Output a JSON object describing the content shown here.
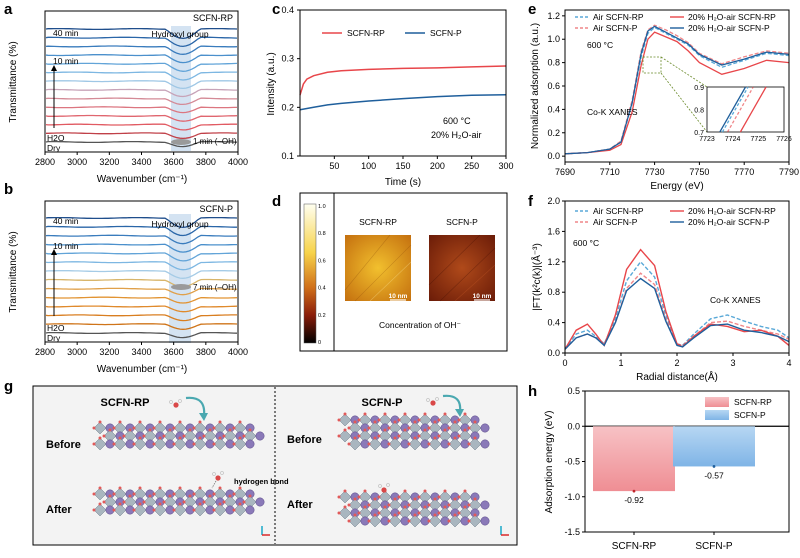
{
  "figure_caption": "",
  "colors": {
    "red": "#e8464a",
    "blue": "#1f5f9c",
    "lightblue": "#5aa9d8",
    "orange": "#e08a2c",
    "bar_red": "#f2a3a8",
    "bar_blue": "#8fc0ea",
    "band": "#c9dcef"
  },
  "panels": {
    "a": {
      "letter": "a",
      "title": "SCFN-RP",
      "band_label": "Hydroxyl group",
      "time_top": "40 min",
      "time_mid": "10 min",
      "arrow_note": "1 min (–OH)",
      "h2o": "H2O",
      "dry": "Dry",
      "xlabel": "Wavenumber (cm⁻¹)",
      "ylabel": "Transmittance (%)",
      "xticks": [
        "2800",
        "3000",
        "3200",
        "3400",
        "3600",
        "3800",
        "4000"
      ]
    },
    "b": {
      "letter": "b",
      "title": "SCFN-P",
      "band_label": "Hydroxyl group",
      "time_top": "40 min",
      "time_mid": "10 min",
      "arrow_note": "7 min (–OH)",
      "h2o": "H2O",
      "dry": "Dry",
      "xlabel": "Wavenumber (cm⁻¹)",
      "ylabel": "Transmittance (%)",
      "xticks": [
        "2800",
        "3000",
        "3200",
        "3400",
        "3600",
        "3800",
        "4000"
      ]
    },
    "c": {
      "letter": "c",
      "legend": [
        "SCFN-RP",
        "SCFN-P"
      ],
      "note1": "600 °C",
      "note2": "20% H₂O-air",
      "xlabel": "Time (s)",
      "ylabel": "Intensity (a.u.)",
      "xticks": [
        "50",
        "100",
        "150",
        "200",
        "250",
        "300"
      ],
      "yticks": [
        "0.1",
        "0.2",
        "0.3",
        "0.4"
      ]
    },
    "d": {
      "letter": "d",
      "scale_ticks": [
        "1.0",
        "0.8",
        "0.6",
        "0.4",
        "0.2",
        "0"
      ],
      "img1_label": "SCFN-RP",
      "img2_label": "SCFN-P",
      "scalebar": "10 nm",
      "caption": "Concentration of OH⁻"
    },
    "e": {
      "letter": "e",
      "legend": [
        "Air SCFN-RP",
        "Air SCFN-P",
        "20% H₂O-air SCFN-RP",
        "20% H₂O-air SCFN-P"
      ],
      "temp": "600 °C",
      "edge_label": "Co-K XANES",
      "xlabel": "Energy (eV)",
      "ylabel": "Normalized adsorption (a.u.)",
      "xticks": [
        "7690",
        "7710",
        "7730",
        "7750",
        "7770",
        "7790"
      ],
      "yticks": [
        "0.0",
        "0.2",
        "0.4",
        "0.6",
        "0.8",
        "1.0",
        "1.2"
      ],
      "inset_xticks": [
        "7723",
        "7724",
        "7725",
        "7726"
      ],
      "inset_yticks": [
        "0.7",
        "0.8",
        "0.9"
      ]
    },
    "f": {
      "letter": "f",
      "legend": [
        "Air SCFN-RP",
        "Air SCFN-P",
        "20% H₂O-air SCFN-RP",
        "20% H₂O-air SCFN-P"
      ],
      "temp": "600 °C",
      "edge_label": "Co-K XANES",
      "xlabel": "Radial distance(Å)",
      "ylabel": "|FT(k²c(k)|(Å⁻³)",
      "xticks": [
        "0",
        "1",
        "2",
        "3",
        "4"
      ],
      "yticks": [
        "0.0",
        "0.4",
        "0.8",
        "1.2",
        "1.6",
        "2.0"
      ]
    },
    "g": {
      "letter": "g",
      "left_title": "SCFN-RP",
      "right_title": "SCFN-P",
      "before": "Before",
      "after": "After",
      "hbond": "hydrogen bond"
    },
    "h": {
      "letter": "h"
    }
  },
  "chart_data": [
    {
      "panel": "c",
      "type": "line",
      "xlabel": "Time (s)",
      "ylabel": "Intensity (a.u.)",
      "xlim": [
        0,
        300
      ],
      "ylim": [
        0.1,
        0.4
      ],
      "series": [
        {
          "name": "SCFN-RP",
          "x": [
            0,
            5,
            10,
            20,
            40,
            60,
            100,
            150,
            200,
            250,
            300
          ],
          "y": [
            0.225,
            0.248,
            0.258,
            0.265,
            0.272,
            0.275,
            0.278,
            0.28,
            0.281,
            0.283,
            0.285
          ]
        },
        {
          "name": "SCFN-P",
          "x": [
            0,
            20,
            40,
            60,
            100,
            150,
            200,
            250,
            300
          ],
          "y": [
            0.195,
            0.2,
            0.205,
            0.208,
            0.213,
            0.218,
            0.222,
            0.225,
            0.226
          ]
        }
      ]
    },
    {
      "panel": "e",
      "type": "line",
      "xlabel": "Energy (eV)",
      "ylabel": "Normalized adsorption (a.u.)",
      "xlim": [
        7690,
        7790
      ],
      "ylim": [
        -0.05,
        1.25
      ],
      "series": [
        {
          "name": "Air SCFN-RP",
          "x": [
            7690,
            7700,
            7710,
            7715,
            7720,
            7724,
            7727,
            7730,
            7735,
            7740,
            7745,
            7750,
            7760,
            7770,
            7780,
            7790
          ],
          "y": [
            0.02,
            0.03,
            0.06,
            0.12,
            0.45,
            0.85,
            1.05,
            1.1,
            1.05,
            1.0,
            0.95,
            0.86,
            0.76,
            0.82,
            0.88,
            0.86
          ]
        },
        {
          "name": "Air SCFN-P",
          "x": [
            7690,
            7700,
            7710,
            7715,
            7720,
            7724,
            7727,
            7730,
            7735,
            7740,
            7745,
            7750,
            7760,
            7770,
            7780,
            7790
          ],
          "y": [
            0.02,
            0.03,
            0.06,
            0.13,
            0.48,
            0.9,
            1.08,
            1.12,
            1.08,
            1.03,
            0.97,
            0.88,
            0.79,
            0.85,
            0.9,
            0.88
          ]
        },
        {
          "name": "20% H₂O-air SCFN-RP",
          "x": [
            7690,
            7700,
            7710,
            7715,
            7720,
            7724,
            7727,
            7730,
            7735,
            7740,
            7745,
            7750,
            7760,
            7770,
            7780,
            7790
          ],
          "y": [
            0.02,
            0.03,
            0.05,
            0.1,
            0.38,
            0.78,
            1.0,
            1.06,
            1.02,
            0.98,
            0.9,
            0.8,
            0.7,
            0.75,
            0.82,
            0.8
          ]
        },
        {
          "name": "20% H₂O-air SCFN-P",
          "x": [
            7690,
            7700,
            7710,
            7715,
            7720,
            7724,
            7727,
            7730,
            7735,
            7740,
            7745,
            7750,
            7760,
            7770,
            7780,
            7790
          ],
          "y": [
            0.02,
            0.03,
            0.06,
            0.12,
            0.46,
            0.88,
            1.07,
            1.11,
            1.06,
            1.01,
            0.96,
            0.87,
            0.78,
            0.83,
            0.89,
            0.87
          ]
        }
      ]
    },
    {
      "panel": "f",
      "type": "line",
      "xlabel": "Radial distance(Å)",
      "ylabel": "|FT(k²c(k)|(Å⁻³)",
      "xlim": [
        0,
        4
      ],
      "ylim": [
        0,
        2.0
      ],
      "series": [
        {
          "name": "Air SCFN-RP",
          "x": [
            0,
            0.2,
            0.4,
            0.55,
            0.7,
            0.9,
            1.1,
            1.35,
            1.6,
            1.8,
            2.0,
            2.1,
            2.3,
            2.6,
            2.9,
            3.2,
            3.5,
            3.8,
            4.0
          ],
          "y": [
            0.05,
            0.25,
            0.3,
            0.22,
            0.12,
            0.45,
            0.95,
            1.2,
            1.0,
            0.5,
            0.12,
            0.1,
            0.25,
            0.45,
            0.5,
            0.42,
            0.35,
            0.3,
            0.2
          ]
        },
        {
          "name": "Air SCFN-P",
          "x": [
            0,
            0.2,
            0.4,
            0.55,
            0.7,
            0.9,
            1.1,
            1.35,
            1.6,
            1.8,
            2.0,
            2.1,
            2.3,
            2.6,
            2.9,
            3.2,
            3.5,
            3.8,
            4.0
          ],
          "y": [
            0.05,
            0.2,
            0.25,
            0.2,
            0.12,
            0.4,
            0.85,
            1.05,
            0.9,
            0.45,
            0.12,
            0.1,
            0.22,
            0.4,
            0.42,
            0.35,
            0.3,
            0.25,
            0.18
          ]
        },
        {
          "name": "20% H₂O-air SCFN-RP",
          "x": [
            0,
            0.2,
            0.4,
            0.55,
            0.7,
            0.9,
            1.1,
            1.35,
            1.6,
            1.8,
            2.0,
            2.1,
            2.3,
            2.6,
            2.9,
            3.2,
            3.5,
            3.8,
            4.0
          ],
          "y": [
            0.05,
            0.3,
            0.38,
            0.25,
            0.1,
            0.5,
            1.1,
            1.36,
            1.15,
            0.55,
            0.12,
            0.08,
            0.22,
            0.38,
            0.35,
            0.28,
            0.3,
            0.22,
            0.1
          ]
        },
        {
          "name": "20% H₂O-air SCFN-P",
          "x": [
            0,
            0.2,
            0.4,
            0.55,
            0.7,
            0.9,
            1.1,
            1.35,
            1.6,
            1.8,
            2.0,
            2.1,
            2.3,
            2.6,
            2.9,
            3.2,
            3.5,
            3.8,
            4.0
          ],
          "y": [
            0.05,
            0.2,
            0.25,
            0.2,
            0.1,
            0.4,
            0.82,
            0.98,
            0.85,
            0.42,
            0.1,
            0.08,
            0.2,
            0.36,
            0.38,
            0.3,
            0.27,
            0.22,
            0.15
          ]
        }
      ]
    },
    {
      "panel": "h",
      "type": "bar",
      "categories": [
        "SCFN-RP",
        "SCFN-P"
      ],
      "values": [
        -0.92,
        -0.57
      ],
      "value_labels": [
        "-0.92",
        "-0.57"
      ],
      "legend": [
        "SCFN-RP",
        "SCFN-P"
      ],
      "ylabel": "Adsorption energy (eV)",
      "ylim": [
        -1.5,
        0.5
      ],
      "yticks": [
        "-1.5",
        "-1.0",
        "-0.5",
        "0.0",
        "0.5"
      ]
    }
  ]
}
